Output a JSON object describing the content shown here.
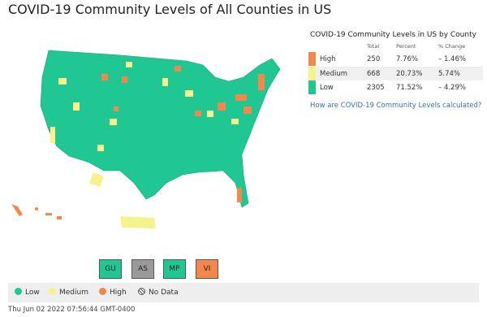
{
  "title": "COVID-19 Community Levels of All Counties in US",
  "table": {
    "title": "COVID-19 Community Levels in US by County",
    "columns": [
      "Total",
      "Percent",
      "% Change"
    ],
    "rows": [
      {
        "level": "High",
        "color": "#f4874b",
        "total": "250",
        "percent": "7.76%",
        "change": "– 1.46%"
      },
      {
        "level": "Medium",
        "color": "#f6f28c",
        "total": "668",
        "percent": "20.73%",
        "change": "5.74%"
      },
      {
        "level": "Low",
        "color": "#20c793",
        "total": "2305",
        "percent": "71.52%",
        "change": "– 4.29%"
      }
    ]
  },
  "link": "How are COVID-19 Community Levels calculated?",
  "territories": [
    {
      "label": "GU",
      "color": "#20c793"
    },
    {
      "label": "AS",
      "color": "#9a9a9a"
    },
    {
      "label": "MP",
      "color": "#20c793"
    },
    {
      "label": "VI",
      "color": "#f4874b"
    }
  ],
  "legend": [
    {
      "label": "Low",
      "color": "#20c793"
    },
    {
      "label": "Medium",
      "color": "#f6f28c"
    },
    {
      "label": "High",
      "color": "#f4874b"
    },
    {
      "label": "No Data",
      "color": "hatch"
    }
  ],
  "timestamp": "Thu Jun 02 2022 07:56:44 GMT-0400"
}
